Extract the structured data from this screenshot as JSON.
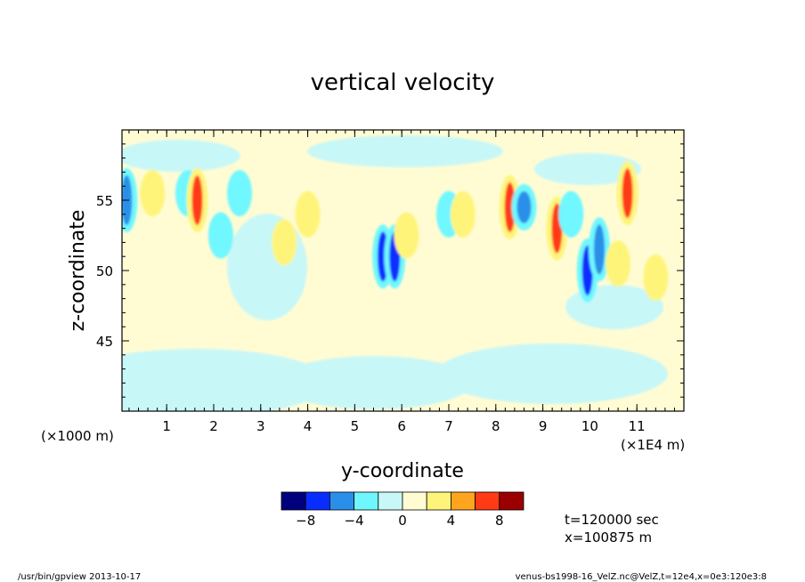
{
  "chart_data": {
    "type": "heatmap",
    "title": "vertical velocity",
    "xlabel": "y-coordinate",
    "ylabel": "z-coordinate",
    "x_scale_note": "(×1000 m)",
    "x_unit_note": "(×1E4 m)",
    "xlim": [
      0.05,
      12.0
    ],
    "ylim": [
      40,
      60
    ],
    "x_ticks": [
      1,
      2,
      3,
      4,
      5,
      6,
      7,
      8,
      9,
      10,
      11
    ],
    "x_tick_labels": [
      "1",
      "2",
      "3",
      "4",
      "5",
      "6",
      "7",
      "8",
      "9",
      "10",
      "11"
    ],
    "y_ticks": [
      45,
      50,
      55
    ],
    "y_tick_labels": [
      "45",
      "50",
      "55"
    ],
    "colorbar": {
      "levels": [
        -10,
        -8,
        -6,
        -4,
        -2,
        0,
        2,
        4,
        6,
        8,
        10
      ],
      "labels": [
        {
          "value": -8,
          "text": "−8"
        },
        {
          "value": -4,
          "text": "−4"
        },
        {
          "value": 0,
          "text": "0"
        },
        {
          "value": 4,
          "text": "4"
        },
        {
          "value": 8,
          "text": "8"
        }
      ],
      "colors": [
        "#00007f",
        "#0a2dff",
        "#2a8fe8",
        "#6ff7ff",
        "#c8f7f7",
        "#fffcd4",
        "#fff47a",
        "#ffa41d",
        "#ff3a14",
        "#9b0000"
      ]
    },
    "features": [
      {
        "x": 0.15,
        "y": 55.0,
        "value": -6
      },
      {
        "x": 0.7,
        "y": 55.5,
        "value": 3
      },
      {
        "x": 1.45,
        "y": 55.5,
        "value": -4
      },
      {
        "x": 1.65,
        "y": 55.0,
        "value": 6
      },
      {
        "x": 2.15,
        "y": 52.5,
        "value": -4
      },
      {
        "x": 2.55,
        "y": 55.5,
        "value": -3
      },
      {
        "x": 3.5,
        "y": 52.0,
        "value": 2
      },
      {
        "x": 4.0,
        "y": 54.0,
        "value": 2
      },
      {
        "x": 5.6,
        "y": 51.0,
        "value": -8
      },
      {
        "x": 5.85,
        "y": 51.0,
        "value": -7
      },
      {
        "x": 6.1,
        "y": 52.5,
        "value": 2
      },
      {
        "x": 7.0,
        "y": 54.0,
        "value": -4
      },
      {
        "x": 7.3,
        "y": 54.0,
        "value": 2
      },
      {
        "x": 8.3,
        "y": 54.5,
        "value": 6
      },
      {
        "x": 8.6,
        "y": 54.5,
        "value": -5
      },
      {
        "x": 9.3,
        "y": 53.0,
        "value": 6
      },
      {
        "x": 9.6,
        "y": 54.0,
        "value": -4
      },
      {
        "x": 9.95,
        "y": 50.0,
        "value": -8
      },
      {
        "x": 10.2,
        "y": 51.5,
        "value": -6
      },
      {
        "x": 10.6,
        "y": 50.5,
        "value": 2
      },
      {
        "x": 10.8,
        "y": 55.5,
        "value": 6
      },
      {
        "x": 11.4,
        "y": 49.5,
        "value": 2
      }
    ]
  },
  "info": {
    "time": "t=120000 sec",
    "position": "x=100875 m"
  },
  "footer": {
    "left": "/usr/bin/gpview  2013-10-17",
    "right": "venus-bs1998-16_VelZ.nc@VelZ,t=12e4,x=0e3:120e3:8"
  }
}
